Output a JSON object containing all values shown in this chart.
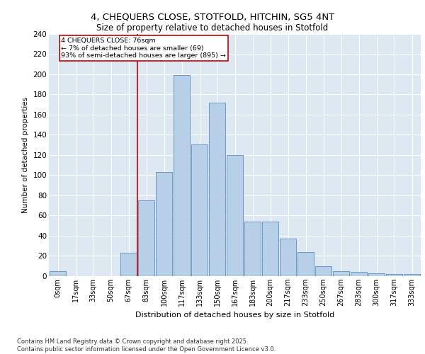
{
  "title_line1": "4, CHEQUERS CLOSE, STOTFOLD, HITCHIN, SG5 4NT",
  "title_line2": "Size of property relative to detached houses in Stotfold",
  "xlabel": "Distribution of detached houses by size in Stotfold",
  "ylabel": "Number of detached properties",
  "categories": [
    "0sqm",
    "17sqm",
    "33sqm",
    "50sqm",
    "67sqm",
    "83sqm",
    "100sqm",
    "117sqm",
    "133sqm",
    "150sqm",
    "167sqm",
    "183sqm",
    "200sqm",
    "217sqm",
    "233sqm",
    "250sqm",
    "267sqm",
    "283sqm",
    "300sqm",
    "317sqm",
    "333sqm"
  ],
  "values": [
    5,
    0,
    0,
    0,
    23,
    75,
    103,
    199,
    130,
    172,
    120,
    54,
    54,
    37,
    24,
    10,
    5,
    4,
    3,
    2,
    2
  ],
  "bar_color": "#b8cfe8",
  "bar_edge_color": "#5b8ec4",
  "bg_color": "#dde8f3",
  "grid_color": "#ffffff",
  "vline_x_index": 5,
  "vline_color": "#cc0000",
  "annotation_text": "4 CHEQUERS CLOSE: 76sqm\n← 7% of detached houses are smaller (69)\n93% of semi-detached houses are larger (895) →",
  "annotation_box_color": "#cc0000",
  "footer_text": "Contains HM Land Registry data © Crown copyright and database right 2025.\nContains public sector information licensed under the Open Government Licence v3.0.",
  "ylim": [
    0,
    240
  ],
  "yticks": [
    0,
    20,
    40,
    60,
    80,
    100,
    120,
    140,
    160,
    180,
    200,
    220,
    240
  ]
}
